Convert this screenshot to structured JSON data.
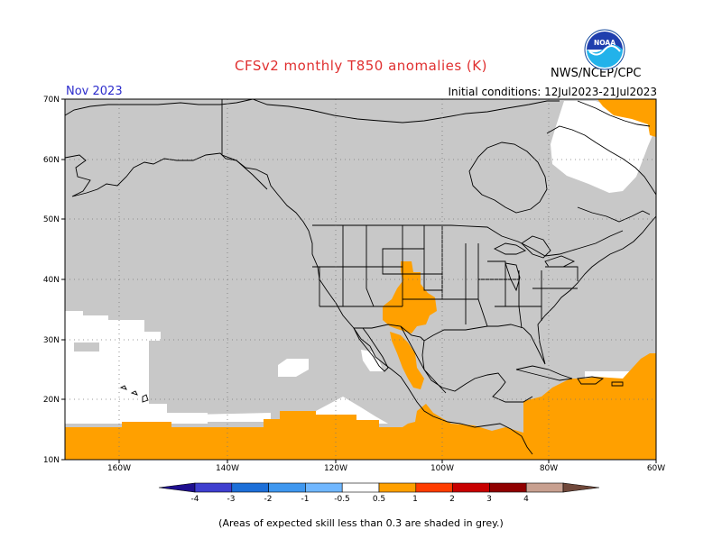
{
  "header": {
    "title": "CFSv2 monthly T850 anomalies (K)",
    "agency": "NWS/NCEP/CPC",
    "valid_month": "Nov 2023",
    "initial_conditions": "Initial conditions: 12Jul2023-21Jul2023",
    "logo_text": "NOAA"
  },
  "map": {
    "lon_labels": [
      "160W",
      "140W",
      "120W",
      "100W",
      "80W",
      "60W"
    ],
    "lat_labels": [
      "70N",
      "60N",
      "50N",
      "40N",
      "30N",
      "20N",
      "10N"
    ],
    "colors": {
      "grey": "#c8c8c8",
      "orange": "#ffa000",
      "white": "#ffffff",
      "coast": "#000000"
    }
  },
  "legend": {
    "labels": [
      "-4",
      "-3",
      "-2",
      "-1",
      "-0.5",
      "0.5",
      "1",
      "2",
      "3",
      "4"
    ],
    "colors": [
      "#1f0f8f",
      "#3f3fcf",
      "#1d6fd8",
      "#3f97ef",
      "#70b7ff",
      "#ffffff",
      "#ffa000",
      "#ff3d00",
      "#c80000",
      "#900000",
      "#c8a090",
      "#70483a"
    ]
  },
  "footnote": "(Areas of expected skill less than 0.3 are shaded in grey.)"
}
